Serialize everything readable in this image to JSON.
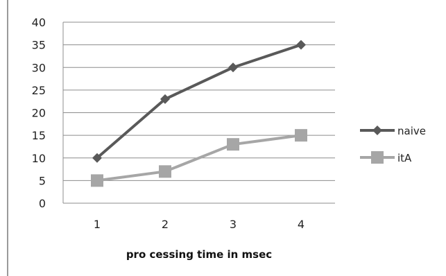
{
  "chart_data": {
    "type": "line",
    "x": [
      1,
      2,
      3,
      4
    ],
    "categories": [
      "1",
      "2",
      "3",
      "4"
    ],
    "series": [
      {
        "name": "naive",
        "values": [
          10,
          23,
          30,
          35
        ],
        "color": "#595959",
        "marker": "diamond"
      },
      {
        "name": "itA",
        "values": [
          5,
          7,
          13,
          15
        ],
        "color": "#a6a6a6",
        "marker": "square"
      }
    ],
    "title": "",
    "xlabel": "pro cessing time in msec",
    "ylabel": "",
    "ylim": [
      0,
      40
    ],
    "yticks": [
      "0",
      "5",
      "10",
      "15",
      "20",
      "25",
      "30",
      "35",
      "40"
    ],
    "grid": true,
    "legend_position": "right"
  }
}
